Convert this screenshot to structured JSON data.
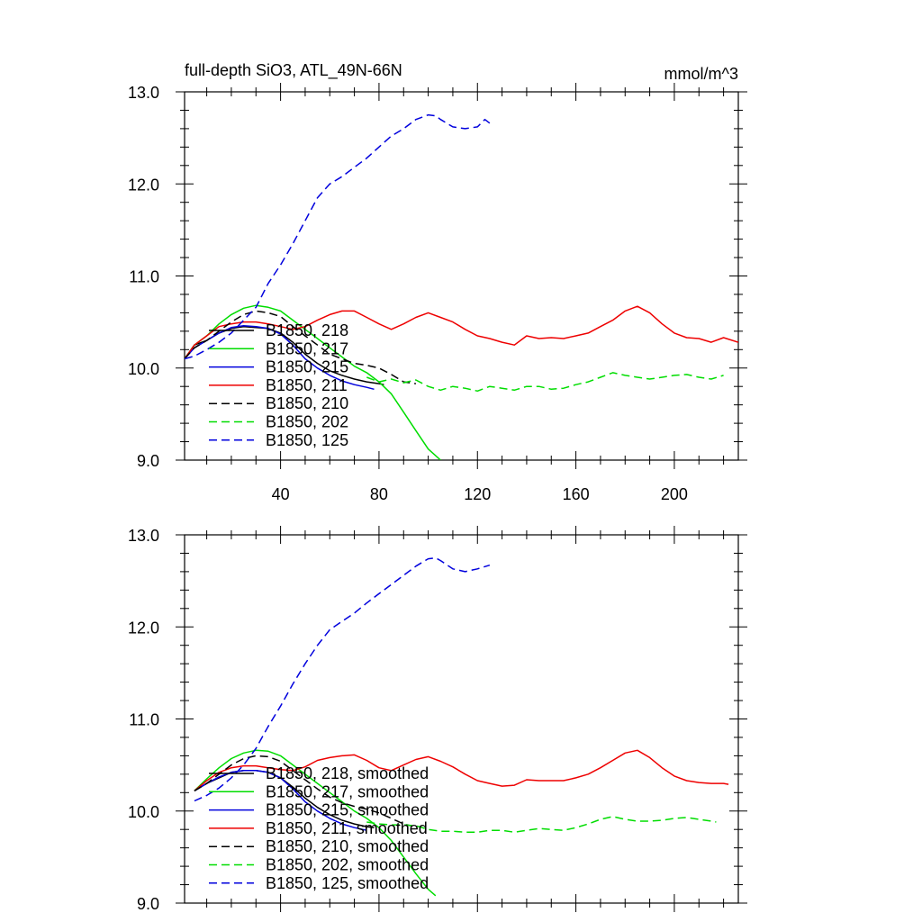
{
  "chart_data": [
    {
      "type": "line",
      "title": "full-depth SiO3, ATL_49N-66N",
      "units": "mmol/m^3",
      "xlabel": "",
      "ylabel": "",
      "xlim": [
        1,
        226
      ],
      "ylim": [
        9.0,
        13.0
      ],
      "xticks": [
        40,
        80,
        120,
        160,
        200
      ],
      "xtick_labels": [
        "40",
        "80",
        "120",
        "160",
        "200"
      ],
      "yticks": [
        9.0,
        10.0,
        11.0,
        12.0,
        13.0
      ],
      "ytick_labels": [
        "9.0",
        "10.0",
        "11.0",
        "12.0",
        "13.0"
      ],
      "legend_position": "lower-left",
      "grid": false,
      "series": [
        {
          "name": "B1850, 218",
          "color": "#000000",
          "dash": "solid",
          "x": [
            1,
            5,
            10,
            15,
            20,
            25,
            30,
            35,
            40,
            45,
            50,
            55,
            60,
            65,
            70,
            75,
            80,
            82
          ],
          "y": [
            10.1,
            10.25,
            10.3,
            10.38,
            10.43,
            10.45,
            10.44,
            10.43,
            10.38,
            10.28,
            10.15,
            10.05,
            9.97,
            9.92,
            9.88,
            9.85,
            9.83,
            9.82
          ]
        },
        {
          "name": "B1850, 217",
          "color": "#00dd00",
          "dash": "solid",
          "x": [
            1,
            5,
            10,
            15,
            20,
            25,
            30,
            35,
            40,
            45,
            50,
            55,
            60,
            65,
            70,
            75,
            80,
            85,
            90,
            95,
            100,
            105
          ],
          "y": [
            10.1,
            10.25,
            10.35,
            10.48,
            10.58,
            10.65,
            10.68,
            10.66,
            10.62,
            10.52,
            10.42,
            10.32,
            10.22,
            10.12,
            10.02,
            9.95,
            9.85,
            9.72,
            9.52,
            9.32,
            9.12,
            9.0
          ]
        },
        {
          "name": "B1850, 215",
          "color": "#0000dd",
          "dash": "solid",
          "x": [
            1,
            5,
            10,
            15,
            20,
            25,
            30,
            35,
            40,
            45,
            50,
            55,
            60,
            65,
            70,
            75,
            78
          ],
          "y": [
            10.1,
            10.22,
            10.3,
            10.38,
            10.44,
            10.46,
            10.45,
            10.43,
            10.37,
            10.25,
            10.1,
            10.0,
            9.92,
            9.86,
            9.82,
            9.79,
            9.77
          ]
        },
        {
          "name": "B1850, 211",
          "color": "#ee0000",
          "dash": "solid",
          "x": [
            1,
            5,
            10,
            15,
            20,
            25,
            30,
            35,
            40,
            45,
            50,
            55,
            60,
            65,
            70,
            75,
            80,
            85,
            90,
            95,
            100,
            105,
            110,
            115,
            120,
            125,
            130,
            135,
            140,
            145,
            150,
            155,
            160,
            165,
            170,
            175,
            180,
            185,
            190,
            195,
            200,
            205,
            210,
            215,
            220,
            226
          ],
          "y": [
            10.1,
            10.25,
            10.35,
            10.45,
            10.48,
            10.5,
            10.5,
            10.48,
            10.45,
            10.42,
            10.45,
            10.52,
            10.58,
            10.62,
            10.62,
            10.55,
            10.48,
            10.42,
            10.48,
            10.55,
            10.6,
            10.55,
            10.5,
            10.42,
            10.35,
            10.32,
            10.28,
            10.25,
            10.35,
            10.32,
            10.33,
            10.32,
            10.35,
            10.38,
            10.45,
            10.52,
            10.62,
            10.67,
            10.6,
            10.48,
            10.38,
            10.33,
            10.32,
            10.28,
            10.33,
            10.28
          ]
        },
        {
          "name": "B1850, 210",
          "color": "#000000",
          "dash": "dashed",
          "x": [
            1,
            5,
            10,
            15,
            20,
            25,
            30,
            35,
            40,
            45,
            50,
            55,
            60,
            65,
            70,
            75,
            80,
            85,
            90,
            95
          ],
          "y": [
            10.1,
            10.22,
            10.3,
            10.4,
            10.5,
            10.58,
            10.62,
            10.6,
            10.56,
            10.45,
            10.35,
            10.25,
            10.15,
            10.1,
            10.05,
            10.03,
            10.0,
            9.93,
            9.85,
            9.83
          ]
        },
        {
          "name": "B1850, 202",
          "color": "#00dd00",
          "dash": "dashed",
          "x": [
            75,
            80,
            85,
            90,
            95,
            100,
            105,
            110,
            115,
            120,
            125,
            130,
            135,
            140,
            145,
            150,
            155,
            160,
            165,
            170,
            175,
            180,
            185,
            190,
            195,
            200,
            205,
            210,
            215,
            220
          ],
          "y": [
            9.9,
            9.85,
            9.88,
            9.84,
            9.87,
            9.8,
            9.76,
            9.8,
            9.78,
            9.75,
            9.8,
            9.78,
            9.76,
            9.8,
            9.8,
            9.77,
            9.78,
            9.82,
            9.85,
            9.9,
            9.95,
            9.92,
            9.9,
            9.88,
            9.9,
            9.92,
            9.93,
            9.9,
            9.88,
            9.92
          ]
        },
        {
          "name": "B1850, 125",
          "color": "#0000dd",
          "dash": "dashed",
          "x": [
            1,
            5,
            10,
            15,
            20,
            25,
            30,
            35,
            40,
            45,
            50,
            55,
            60,
            65,
            70,
            75,
            80,
            85,
            90,
            95,
            100,
            103,
            105,
            110,
            115,
            120,
            123,
            125
          ],
          "y": [
            10.1,
            10.13,
            10.2,
            10.28,
            10.38,
            10.52,
            10.66,
            10.92,
            11.12,
            11.35,
            11.6,
            11.85,
            12.0,
            12.08,
            12.18,
            12.28,
            12.4,
            12.52,
            12.6,
            12.7,
            12.75,
            12.74,
            12.7,
            12.62,
            12.6,
            12.62,
            12.7,
            12.66
          ]
        }
      ]
    },
    {
      "type": "line",
      "title": "",
      "xlabel": "",
      "ylabel": "",
      "xlim": [
        1,
        226
      ],
      "ylim": [
        9.0,
        13.0
      ],
      "xticks": [
        40,
        80,
        120,
        160,
        200
      ],
      "yticks": [
        9.0,
        10.0,
        11.0,
        12.0,
        13.0
      ],
      "ytick_labels": [
        "9.0",
        "10.0",
        "11.0",
        "12.0",
        "13.0"
      ],
      "legend_position": "lower-left",
      "grid": false,
      "series": [
        {
          "name": "B1850, 218, smoothed",
          "color": "#000000",
          "dash": "solid",
          "x": [
            5,
            10,
            15,
            20,
            25,
            30,
            35,
            40,
            45,
            50,
            55,
            60,
            65,
            70,
            75,
            78
          ],
          "y": [
            10.22,
            10.3,
            10.36,
            10.42,
            10.44,
            10.44,
            10.42,
            10.36,
            10.26,
            10.14,
            10.04,
            9.96,
            9.9,
            9.86,
            9.83,
            9.82
          ]
        },
        {
          "name": "B1850, 217, smoothed",
          "color": "#00dd00",
          "dash": "solid",
          "x": [
            5,
            10,
            15,
            20,
            25,
            30,
            35,
            40,
            45,
            50,
            55,
            60,
            65,
            70,
            75,
            80,
            85,
            90,
            95,
            100,
            103
          ],
          "y": [
            10.22,
            10.35,
            10.47,
            10.57,
            10.63,
            10.66,
            10.65,
            10.6,
            10.5,
            10.4,
            10.3,
            10.2,
            10.1,
            10.0,
            9.92,
            9.82,
            9.68,
            9.5,
            9.32,
            9.15,
            9.08
          ]
        },
        {
          "name": "B1850, 215, smoothed",
          "color": "#0000dd",
          "dash": "solid",
          "x": [
            5,
            10,
            15,
            20,
            25,
            30,
            35,
            40,
            45,
            50,
            55,
            60,
            65,
            70,
            75
          ],
          "y": [
            10.22,
            10.3,
            10.37,
            10.42,
            10.44,
            10.44,
            10.42,
            10.36,
            10.24,
            10.1,
            10.0,
            9.92,
            9.86,
            9.82,
            9.79
          ]
        },
        {
          "name": "B1850, 211, smoothed",
          "color": "#ee0000",
          "dash": "solid",
          "x": [
            5,
            10,
            15,
            20,
            25,
            30,
            35,
            40,
            45,
            50,
            55,
            60,
            65,
            70,
            75,
            80,
            85,
            90,
            95,
            100,
            105,
            110,
            115,
            120,
            125,
            130,
            135,
            140,
            145,
            150,
            155,
            160,
            165,
            170,
            175,
            180,
            185,
            190,
            195,
            200,
            205,
            210,
            215,
            220,
            222
          ],
          "y": [
            10.22,
            10.33,
            10.42,
            10.47,
            10.49,
            10.49,
            10.47,
            10.45,
            10.44,
            10.48,
            10.55,
            10.58,
            10.6,
            10.61,
            10.55,
            10.47,
            10.44,
            10.5,
            10.56,
            10.59,
            10.54,
            10.48,
            10.4,
            10.33,
            10.3,
            10.27,
            10.28,
            10.34,
            10.33,
            10.33,
            10.33,
            10.36,
            10.4,
            10.47,
            10.55,
            10.63,
            10.66,
            10.58,
            10.47,
            10.38,
            10.33,
            10.31,
            10.3,
            10.3,
            10.29
          ]
        },
        {
          "name": "B1850, 210, smoothed",
          "color": "#000000",
          "dash": "dashed",
          "x": [
            5,
            10,
            15,
            20,
            25,
            30,
            35,
            40,
            45,
            50,
            55,
            60,
            65,
            70,
            75,
            80,
            85,
            90,
            93
          ],
          "y": [
            10.22,
            10.3,
            10.4,
            10.5,
            10.57,
            10.6,
            10.59,
            10.54,
            10.44,
            10.34,
            10.24,
            10.15,
            10.09,
            10.05,
            10.02,
            9.98,
            9.92,
            9.86,
            9.84
          ]
        },
        {
          "name": "B1850, 202, smoothed",
          "color": "#00dd00",
          "dash": "dashed",
          "x": [
            75,
            80,
            85,
            90,
            95,
            100,
            105,
            110,
            115,
            120,
            125,
            130,
            135,
            140,
            145,
            150,
            155,
            160,
            165,
            170,
            175,
            180,
            185,
            190,
            195,
            200,
            205,
            210,
            215,
            217
          ],
          "y": [
            9.88,
            9.86,
            9.85,
            9.85,
            9.84,
            9.8,
            9.78,
            9.78,
            9.77,
            9.77,
            9.79,
            9.79,
            9.77,
            9.79,
            9.81,
            9.8,
            9.79,
            9.82,
            9.86,
            9.91,
            9.94,
            9.91,
            9.89,
            9.89,
            9.9,
            9.92,
            9.93,
            9.91,
            9.89,
            9.88
          ]
        },
        {
          "name": "B1850, 125, smoothed",
          "color": "#0000dd",
          "dash": "dashed",
          "x": [
            5,
            10,
            15,
            20,
            25,
            30,
            35,
            40,
            45,
            50,
            55,
            60,
            65,
            70,
            75,
            80,
            85,
            90,
            95,
            100,
            103,
            105,
            110,
            115,
            120,
            125
          ],
          "y": [
            10.11,
            10.17,
            10.25,
            10.36,
            10.5,
            10.68,
            10.92,
            11.14,
            11.38,
            11.6,
            11.8,
            11.97,
            12.06,
            12.15,
            12.26,
            12.36,
            12.46,
            12.56,
            12.66,
            12.74,
            12.75,
            12.72,
            12.63,
            12.6,
            12.63,
            12.67
          ]
        }
      ]
    }
  ]
}
